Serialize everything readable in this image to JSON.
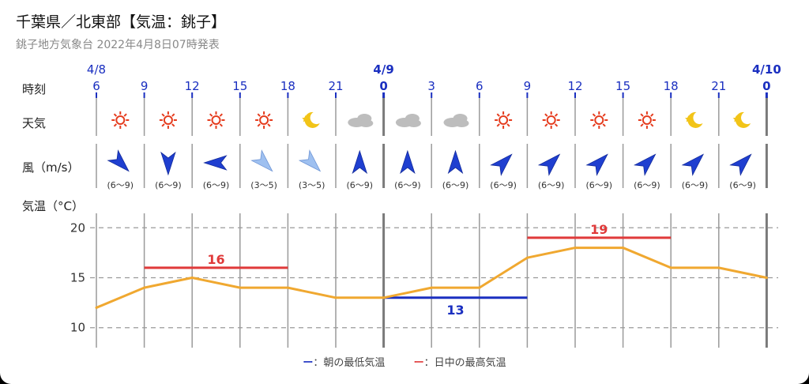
{
  "header": {
    "title": "千葉県／北東部【気温：銚子】",
    "subtitle": "銚子地方気象台 2022年4月8日07時発表"
  },
  "labels": {
    "time": "時刻",
    "weather": "天気",
    "wind": "風（m/s）",
    "temp": "気温（°C）"
  },
  "dates": [
    "4/8",
    "4/9",
    "4/10"
  ],
  "hours": [
    "6",
    "9",
    "12",
    "15",
    "18",
    "21",
    "0",
    "3",
    "6",
    "9",
    "12",
    "15",
    "18",
    "21",
    "0"
  ],
  "weather": [
    "sunny",
    "sunny",
    "sunny",
    "sunny",
    "moon",
    "cloudy",
    "cloudy",
    "cloudy",
    "sunny",
    "sunny",
    "sunny",
    "sunny",
    "moon",
    "moon"
  ],
  "wind": [
    {
      "dir": "NW",
      "strength": "strong",
      "range": "(6〜9)"
    },
    {
      "dir": "N",
      "strength": "strong",
      "range": "(6〜9)"
    },
    {
      "dir": "E",
      "strength": "strong",
      "range": "(6〜9)"
    },
    {
      "dir": "NW",
      "strength": "light",
      "range": "(3〜5)"
    },
    {
      "dir": "NW",
      "strength": "light",
      "range": "(3〜5)"
    },
    {
      "dir": "S",
      "strength": "strong",
      "range": "(6〜9)"
    },
    {
      "dir": "S",
      "strength": "strong",
      "range": "(6〜9)"
    },
    {
      "dir": "S",
      "strength": "strong",
      "range": "(6〜9)"
    },
    {
      "dir": "SW",
      "strength": "strong",
      "range": "(6〜9)"
    },
    {
      "dir": "SW",
      "strength": "strong",
      "range": "(6〜9)"
    },
    {
      "dir": "SW",
      "strength": "strong",
      "range": "(6〜9)"
    },
    {
      "dir": "SW",
      "strength": "strong",
      "range": "(6〜9)"
    },
    {
      "dir": "SW",
      "strength": "strong",
      "range": "(6〜9)"
    },
    {
      "dir": "SW",
      "strength": "strong",
      "range": "(6〜9)"
    }
  ],
  "legend": {
    "min_label": "ー：朝の最低気温",
    "max_label": "ー：日中の最高気温"
  },
  "colors": {
    "temp_line": "#f0a830",
    "min_line": "#1a2fc0",
    "max_line": "#e03a3a",
    "date_text": "#1a2fc0",
    "wind_strong": "#1f3fd0",
    "wind_light": "#9ec0f0",
    "sun": "#e53c1e",
    "moon": "#f2c418",
    "cloud": "#bdbdbd"
  },
  "chart_data": {
    "type": "line",
    "x": [
      "6",
      "9",
      "12",
      "15",
      "18",
      "21",
      "0",
      "3",
      "6",
      "9",
      "12",
      "15",
      "18",
      "21",
      "0"
    ],
    "series": [
      {
        "values": [
          12,
          14,
          15,
          14,
          14,
          13,
          13,
          14,
          14,
          17,
          18,
          18,
          16,
          16,
          15
        ]
      }
    ],
    "ylim": [
      8,
      22
    ],
    "yticks": [
      "10",
      "15",
      "20"
    ],
    "min_temp": {
      "value": "13",
      "label": "13",
      "from": 6,
      "to": 9
    },
    "max_temp": [
      {
        "value": "16",
        "label": "16",
        "from": 1,
        "to": 4
      },
      {
        "value": "19",
        "label": "19",
        "from": 9,
        "to": 12
      }
    ]
  }
}
